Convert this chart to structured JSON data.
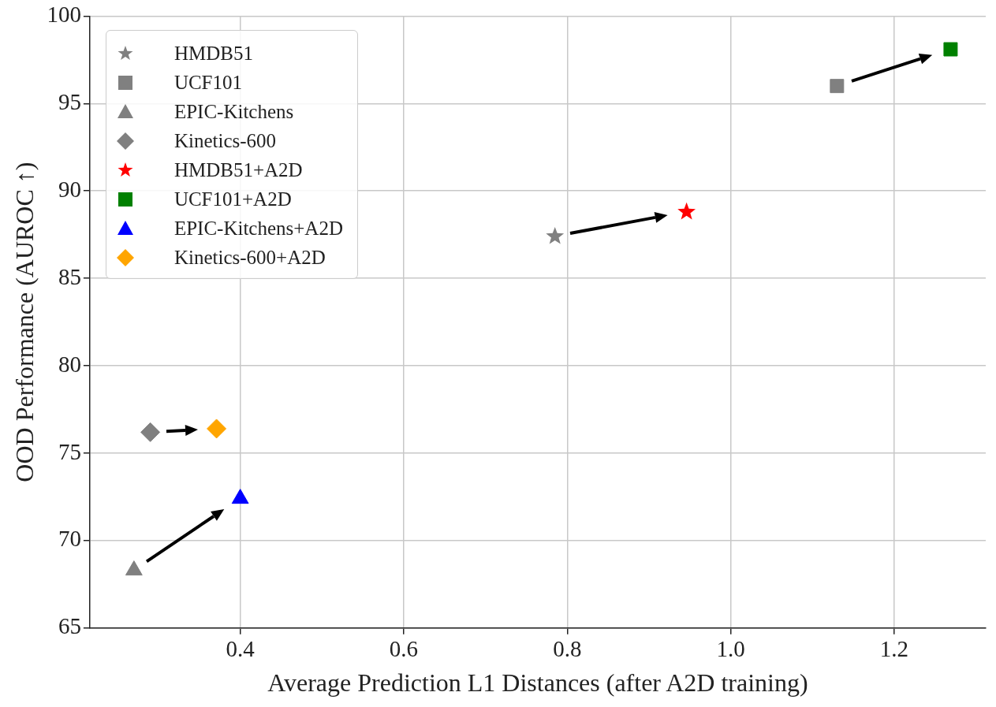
{
  "chart_data": {
    "type": "scatter",
    "xlabel": "Average Prediction L1 Distances (after A2D training)",
    "ylabel": "OOD Performance (AUROC ↑)",
    "xlim": [
      0.216,
      1.312
    ],
    "xticks": [
      0.4,
      0.6,
      0.8,
      {
        "value": 1,
        "label": "1.0"
      },
      1.2
    ],
    "ylim": [
      65,
      100
    ],
    "yticks": [
      65,
      70,
      75,
      80,
      85,
      90,
      95,
      100
    ],
    "grid": true,
    "legend": "top left",
    "series": [
      {
        "name": "HMDB51",
        "color": "#808080",
        "marker": "star",
        "x": [
          0.785
        ],
        "values": [
          87.4
        ]
      },
      {
        "name": "UCF101",
        "color": "#808080",
        "marker": "square",
        "x": [
          1.13
        ],
        "values": [
          96.0
        ]
      },
      {
        "name": "EPIC-Kitchens",
        "color": "#808080",
        "marker": "triangle",
        "x": [
          0.27
        ],
        "values": [
          68.3
        ]
      },
      {
        "name": "Kinetics-600",
        "color": "#808080",
        "marker": "diamond",
        "x": [
          0.29
        ],
        "values": [
          76.2
        ]
      },
      {
        "name": "HMDB51+A2D",
        "color": "#ff0000",
        "marker": "star",
        "x": [
          0.946
        ],
        "values": [
          88.8
        ]
      },
      {
        "name": "UCF101+A2D",
        "color": "#008000",
        "marker": "square",
        "x": [
          1.269
        ],
        "values": [
          98.1
        ]
      },
      {
        "name": "EPIC-Kitchens+A2D",
        "color": "#0000ff",
        "marker": "triangle",
        "x": [
          0.4
        ],
        "values": [
          72.4
        ]
      },
      {
        "name": "Kinetics-600+A2D",
        "color": "#ffa500",
        "marker": "diamond",
        "x": [
          0.371
        ],
        "values": [
          76.4
        ]
      }
    ]
  }
}
